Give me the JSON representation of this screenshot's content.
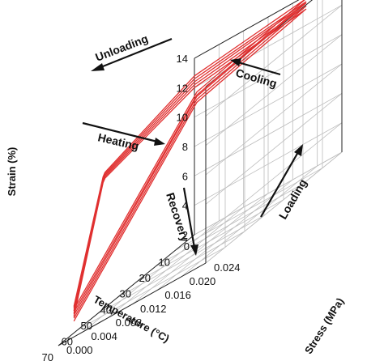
{
  "chart_data": {
    "type": "line",
    "projection": "3d",
    "title": "",
    "axes": {
      "x": {
        "label": "Temperature (°C)",
        "range": [
          0,
          70
        ],
        "ticks": [
          "0",
          "10",
          "20",
          "30",
          "40",
          "50",
          "60",
          "70"
        ],
        "values": [
          0,
          10,
          20,
          30,
          40,
          50,
          60,
          70
        ]
      },
      "y": {
        "label": "Stress (MPa)",
        "range": [
          0.0,
          0.024
        ],
        "ticks": [
          "0.000",
          "0.004",
          "0.008",
          "0.012",
          "0.016",
          "0.020",
          "0.024"
        ],
        "values": [
          0.0,
          0.004,
          0.008,
          0.012,
          0.016,
          0.02,
          0.024
        ]
      },
      "z": {
        "label": "Strain (%)",
        "range": [
          2,
          14
        ],
        "ticks": [
          "2",
          "4",
          "6",
          "8",
          "10",
          "12",
          "14"
        ],
        "values": [
          2,
          4,
          6,
          8,
          10,
          12,
          14
        ]
      }
    },
    "grid": true,
    "series_color": "#e03030",
    "cycles": 5,
    "series": [
      {
        "points": [
          [
            62,
            0.0,
            2.8
          ],
          [
            62,
            0.02,
            13.0
          ],
          [
            9,
            0.021,
            13.4
          ],
          [
            0,
            0.0,
            12.0
          ],
          [
            46,
            0.0,
            10.8
          ],
          [
            47,
            0.0,
            10.6
          ],
          [
            62,
            0.0,
            3.1
          ]
        ]
      },
      {
        "points": [
          [
            62,
            0.0,
            3.0
          ],
          [
            62,
            0.02,
            13.2
          ],
          [
            9,
            0.021,
            13.6
          ],
          [
            0,
            0.0,
            12.2
          ],
          [
            46,
            0.0,
            10.9
          ],
          [
            47,
            0.0,
            10.7
          ],
          [
            62,
            0.0,
            3.3
          ]
        ]
      },
      {
        "points": [
          [
            62,
            0.0,
            3.2
          ],
          [
            62,
            0.02,
            13.4
          ],
          [
            9,
            0.021,
            13.8
          ],
          [
            0,
            0.0,
            12.4
          ],
          [
            46,
            0.0,
            11.0
          ],
          [
            47,
            0.0,
            10.8
          ],
          [
            62,
            0.0,
            3.5
          ]
        ]
      },
      {
        "points": [
          [
            62,
            0.0,
            3.4
          ],
          [
            62,
            0.02,
            13.5
          ],
          [
            9,
            0.021,
            13.9
          ],
          [
            0,
            0.0,
            12.6
          ],
          [
            46,
            0.0,
            11.1
          ],
          [
            47,
            0.0,
            10.9
          ],
          [
            62,
            0.0,
            3.7
          ]
        ]
      },
      {
        "points": [
          [
            62,
            0.0,
            3.6
          ],
          [
            62,
            0.02,
            13.7
          ],
          [
            9,
            0.021,
            14.1
          ],
          [
            0,
            0.0,
            12.8
          ],
          [
            46,
            0.0,
            11.2
          ],
          [
            47,
            0.0,
            11.0
          ],
          [
            62,
            0.0,
            3.8
          ]
        ]
      }
    ],
    "annotations": [
      {
        "text": "Unloading"
      },
      {
        "text": "Cooling"
      },
      {
        "text": "Heating"
      },
      {
        "text": "Recovery"
      },
      {
        "text": "Loading"
      }
    ]
  }
}
